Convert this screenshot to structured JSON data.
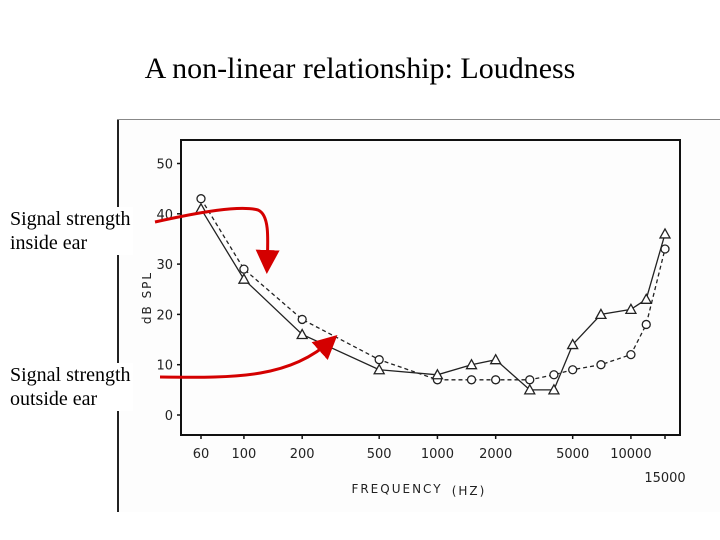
{
  "slide": {
    "title": "A non-linear relationship: Loudness"
  },
  "annotations": {
    "inside": [
      "Signal strength",
      "inside ear"
    ],
    "outside": [
      "Signal strength",
      "outside ear"
    ],
    "arrow_color": "#d40000"
  },
  "chart_data": {
    "type": "line",
    "xlabel": "FREQUENCY",
    "xunit": "(HZ)",
    "ylabel": "dB SPL",
    "ylim": [
      0,
      50
    ],
    "yticks": [
      "0",
      "10",
      "20",
      "30",
      "40",
      "50"
    ],
    "xticks": [
      "60",
      "100",
      "200",
      "500",
      "1000",
      "2000",
      "5000",
      "10000",
      "15000"
    ],
    "x_scale": "log",
    "series": [
      {
        "marker": "circle",
        "dash": "dashed",
        "points": [
          [
            60,
            43
          ],
          [
            100,
            29
          ],
          [
            200,
            19
          ],
          [
            500,
            11
          ],
          [
            1000,
            7
          ],
          [
            1500,
            7
          ],
          [
            2000,
            7
          ],
          [
            3000,
            7
          ],
          [
            4000,
            8
          ],
          [
            5000,
            9
          ],
          [
            7000,
            10
          ],
          [
            10000,
            12
          ],
          [
            12000,
            18
          ],
          [
            15000,
            33
          ]
        ]
      },
      {
        "marker": "triangle",
        "dash": "solid",
        "points": [
          [
            60,
            41
          ],
          [
            100,
            27
          ],
          [
            200,
            16
          ],
          [
            500,
            9
          ],
          [
            1000,
            8
          ],
          [
            1500,
            10
          ],
          [
            2000,
            11
          ],
          [
            3000,
            5
          ],
          [
            4000,
            5
          ],
          [
            5000,
            14
          ],
          [
            7000,
            20
          ],
          [
            10000,
            21
          ],
          [
            12000,
            23
          ],
          [
            15000,
            36
          ]
        ]
      }
    ],
    "grid": false,
    "legend": "none"
  }
}
